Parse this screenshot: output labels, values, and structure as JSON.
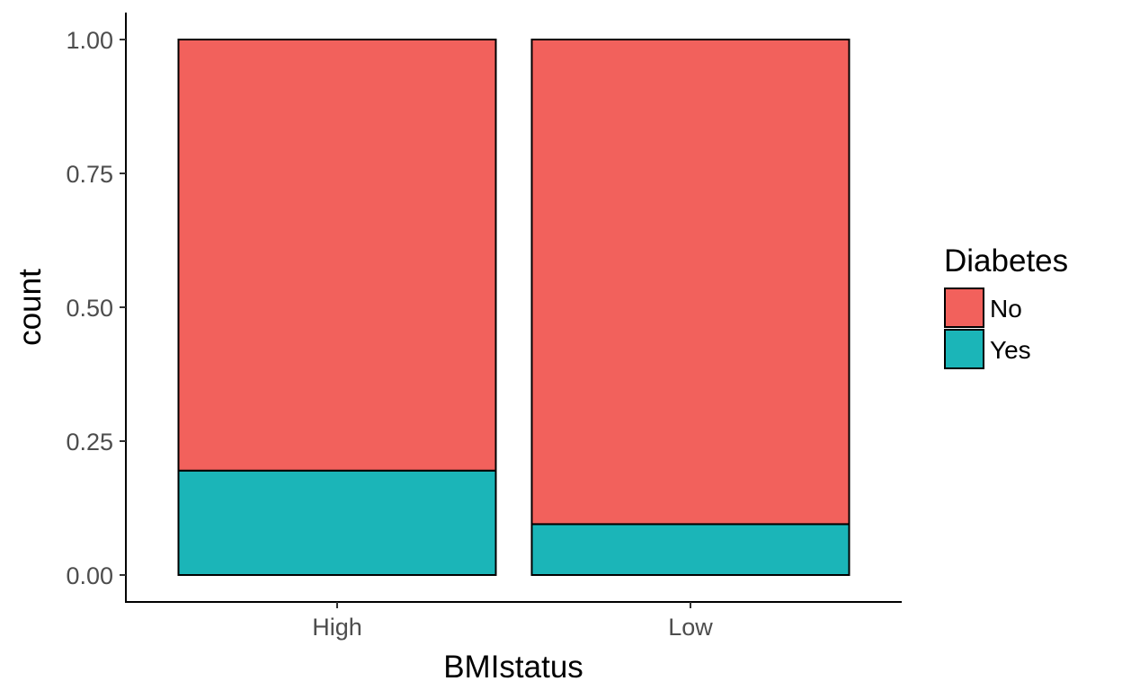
{
  "chart_data": {
    "type": "bar",
    "stacked": true,
    "categories": [
      "High",
      "Low"
    ],
    "series": [
      {
        "name": "Yes",
        "values": [
          0.195,
          0.095
        ],
        "color": "#1bb5b8"
      },
      {
        "name": "No",
        "values": [
          0.805,
          0.905
        ],
        "color": "#f2615c"
      }
    ],
    "xlabel": "BMIstatus",
    "ylabel": "count",
    "ylim": [
      0,
      1
    ],
    "yticks": [
      "0.00",
      "0.25",
      "0.50",
      "0.75",
      "1.00"
    ],
    "ytick_values": [
      0,
      0.25,
      0.5,
      0.75,
      1.0
    ],
    "grid": false,
    "legend": {
      "title": "Diabetes",
      "position": "right",
      "entries": [
        {
          "label": "No",
          "color": "#f2615c"
        },
        {
          "label": "Yes",
          "color": "#1bb5b8"
        }
      ]
    }
  }
}
